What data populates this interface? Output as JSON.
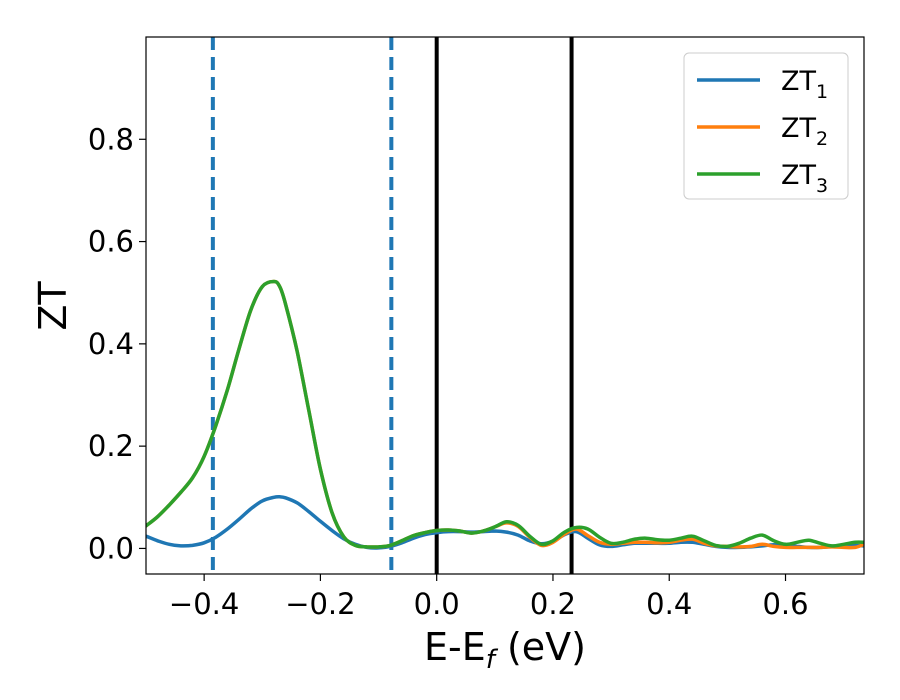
{
  "chart_data": {
    "type": "line",
    "xlabel": "E-E",
    "xlabel_sub": "f",
    "xlabel_unit": " (eV)",
    "ylabel": "ZT",
    "xlim": [
      -0.5,
      0.735
    ],
    "ylim": [
      -0.05,
      1.0
    ],
    "xticks": [
      -0.4,
      -0.2,
      0.0,
      0.2,
      0.4,
      0.6
    ],
    "xtick_labels": [
      "−0.4",
      "−0.2",
      "0.0",
      "0.2",
      "0.4",
      "0.6"
    ],
    "yticks": [
      0.0,
      0.2,
      0.4,
      0.6,
      0.8
    ],
    "ytick_labels": [
      "0.0",
      "0.2",
      "0.4",
      "0.6",
      "0.8"
    ],
    "grid": false,
    "legend_position": "top-right",
    "vlines": [
      {
        "x": -0.385,
        "style": "dashed",
        "color": "#1f77b4"
      },
      {
        "x": -0.078,
        "style": "dashed",
        "color": "#1f77b4"
      },
      {
        "x": 0.0,
        "style": "solid",
        "color": "#000000"
      },
      {
        "x": 0.232,
        "style": "solid",
        "color": "#000000"
      }
    ],
    "series": [
      {
        "name": "ZT",
        "sub": "1",
        "color": "#1f77b4",
        "x": [
          -0.5,
          -0.48,
          -0.46,
          -0.44,
          -0.42,
          -0.4,
          -0.38,
          -0.36,
          -0.34,
          -0.32,
          -0.3,
          -0.28,
          -0.27,
          -0.26,
          -0.24,
          -0.22,
          -0.2,
          -0.18,
          -0.16,
          -0.14,
          -0.12,
          -0.1,
          -0.08,
          -0.06,
          -0.04,
          -0.02,
          0.0,
          0.02,
          0.04,
          0.06,
          0.08,
          0.1,
          0.12,
          0.14,
          0.16,
          0.18,
          0.2,
          0.22,
          0.24,
          0.26,
          0.28,
          0.3,
          0.32,
          0.34,
          0.36,
          0.38,
          0.4,
          0.42,
          0.44,
          0.46,
          0.48,
          0.5,
          0.52,
          0.54,
          0.56,
          0.58,
          0.6,
          0.62,
          0.64,
          0.66,
          0.68,
          0.7,
          0.72,
          0.735
        ],
        "y": [
          0.024,
          0.015,
          0.008,
          0.005,
          0.006,
          0.011,
          0.022,
          0.038,
          0.057,
          0.077,
          0.093,
          0.1,
          0.101,
          0.099,
          0.089,
          0.072,
          0.053,
          0.035,
          0.019,
          0.008,
          0.002,
          0.001,
          0.004,
          0.011,
          0.02,
          0.027,
          0.031,
          0.033,
          0.033,
          0.032,
          0.033,
          0.034,
          0.032,
          0.026,
          0.015,
          0.009,
          0.014,
          0.027,
          0.033,
          0.02,
          0.007,
          0.004,
          0.007,
          0.01,
          0.01,
          0.01,
          0.01,
          0.012,
          0.012,
          0.008,
          0.004,
          0.002,
          0.002,
          0.003,
          0.005,
          0.007,
          0.006,
          0.004,
          0.002,
          0.002,
          0.004,
          0.006,
          0.006,
          0.005
        ]
      },
      {
        "name": "ZT",
        "sub": "2",
        "color": "#ff7f0e",
        "x": [
          -0.5,
          -0.48,
          -0.46,
          -0.44,
          -0.42,
          -0.4,
          -0.38,
          -0.36,
          -0.34,
          -0.32,
          -0.3,
          -0.28,
          -0.27,
          -0.26,
          -0.24,
          -0.22,
          -0.2,
          -0.18,
          -0.16,
          -0.14,
          -0.12,
          -0.1,
          -0.08,
          -0.06,
          -0.04,
          -0.02,
          0.0,
          0.02,
          0.04,
          0.06,
          0.08,
          0.1,
          0.12,
          0.14,
          0.16,
          0.18,
          0.2,
          0.22,
          0.24,
          0.26,
          0.28,
          0.3,
          0.32,
          0.34,
          0.36,
          0.38,
          0.4,
          0.42,
          0.44,
          0.46,
          0.48,
          0.5,
          0.52,
          0.54,
          0.56,
          0.58,
          0.6,
          0.62,
          0.64,
          0.66,
          0.68,
          0.7,
          0.72,
          0.735
        ],
        "y": [
          0.044,
          0.062,
          0.085,
          0.11,
          0.138,
          0.18,
          0.24,
          0.31,
          0.39,
          0.465,
          0.512,
          0.522,
          0.512,
          0.478,
          0.385,
          0.27,
          0.155,
          0.07,
          0.023,
          0.006,
          0.003,
          0.003,
          0.006,
          0.015,
          0.025,
          0.031,
          0.035,
          0.036,
          0.034,
          0.03,
          0.034,
          0.042,
          0.05,
          0.043,
          0.022,
          0.006,
          0.012,
          0.028,
          0.038,
          0.025,
          0.012,
          0.008,
          0.01,
          0.012,
          0.012,
          0.011,
          0.012,
          0.016,
          0.018,
          0.01,
          0.005,
          0.004,
          0.003,
          0.004,
          0.008,
          0.004,
          0.002,
          0.002,
          0.002,
          0.002,
          0.003,
          0.002,
          0.002,
          0.008
        ]
      },
      {
        "name": "ZT",
        "sub": "3",
        "color": "#2ca02c",
        "x": [
          -0.5,
          -0.48,
          -0.46,
          -0.44,
          -0.42,
          -0.4,
          -0.38,
          -0.36,
          -0.34,
          -0.32,
          -0.3,
          -0.28,
          -0.27,
          -0.26,
          -0.24,
          -0.22,
          -0.2,
          -0.18,
          -0.16,
          -0.14,
          -0.12,
          -0.1,
          -0.08,
          -0.06,
          -0.04,
          -0.02,
          0.0,
          0.02,
          0.04,
          0.06,
          0.08,
          0.1,
          0.12,
          0.14,
          0.16,
          0.18,
          0.2,
          0.22,
          0.24,
          0.26,
          0.28,
          0.3,
          0.32,
          0.34,
          0.36,
          0.38,
          0.4,
          0.42,
          0.44,
          0.46,
          0.48,
          0.5,
          0.52,
          0.54,
          0.56,
          0.58,
          0.6,
          0.62,
          0.64,
          0.66,
          0.68,
          0.7,
          0.72,
          0.735
        ],
        "y": [
          0.044,
          0.062,
          0.085,
          0.11,
          0.138,
          0.18,
          0.24,
          0.31,
          0.39,
          0.465,
          0.512,
          0.522,
          0.512,
          0.478,
          0.385,
          0.27,
          0.155,
          0.07,
          0.023,
          0.006,
          0.003,
          0.003,
          0.006,
          0.015,
          0.025,
          0.031,
          0.035,
          0.036,
          0.034,
          0.03,
          0.034,
          0.042,
          0.052,
          0.045,
          0.024,
          0.008,
          0.015,
          0.032,
          0.041,
          0.038,
          0.022,
          0.01,
          0.012,
          0.018,
          0.02,
          0.017,
          0.016,
          0.02,
          0.024,
          0.015,
          0.006,
          0.004,
          0.01,
          0.02,
          0.026,
          0.015,
          0.008,
          0.012,
          0.016,
          0.01,
          0.005,
          0.008,
          0.012,
          0.012
        ]
      }
    ]
  }
}
